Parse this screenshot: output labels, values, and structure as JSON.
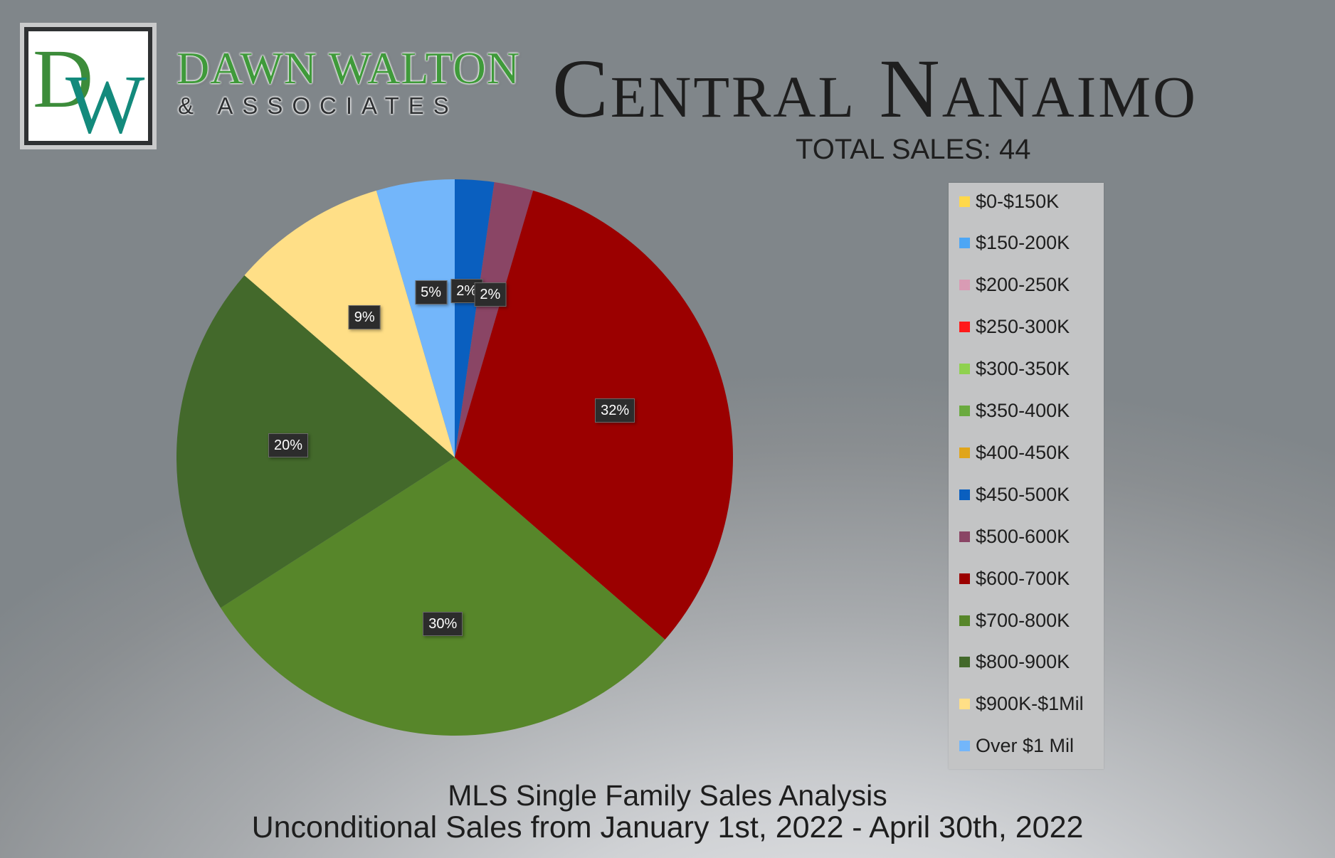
{
  "brand": {
    "logo_letters": "DW",
    "name": "DAWN WALTON",
    "sub": "& ASSOCIATES"
  },
  "header": {
    "title": "Central Nanaimo",
    "total_sales": "TOTAL SALES: 44"
  },
  "footer": {
    "line1": "MLS Single Family Sales Analysis",
    "line2": "Unconditional Sales from January 1st, 2022 - April 30th, 2022"
  },
  "chart_data": {
    "type": "pie",
    "total": 44,
    "legend_position": "right",
    "start_angle_deg": 0,
    "direction": "clockwise",
    "categories": [
      "$0-$150K",
      "$150-200K",
      "$200-250K",
      "$250-300K",
      "$300-350K",
      "$350-400K",
      "$400-450K",
      "$450-500K",
      "$500-600K",
      "$600-700K",
      "$700-800K",
      "$800-900K",
      "$900K-$1Mil",
      "Over $1 Mil"
    ],
    "values": [
      0,
      0,
      0,
      0,
      0,
      0,
      0,
      1,
      1,
      14,
      13,
      9,
      4,
      2
    ],
    "data_labels": [
      "",
      "",
      "",
      "",
      "",
      "",
      "",
      "2%",
      "2%",
      "32%",
      "30%",
      "20%",
      "9%",
      "5%"
    ],
    "colors": [
      "#ffd84a",
      "#4da6f5",
      "#d99bb4",
      "#ff1a1a",
      "#8fd14f",
      "#6aaa3f",
      "#e0a51a",
      "#0a5fbf",
      "#8a4565",
      "#9b0000",
      "#57862a",
      "#43692b",
      "#ffdf87",
      "#73b6fa"
    ]
  }
}
